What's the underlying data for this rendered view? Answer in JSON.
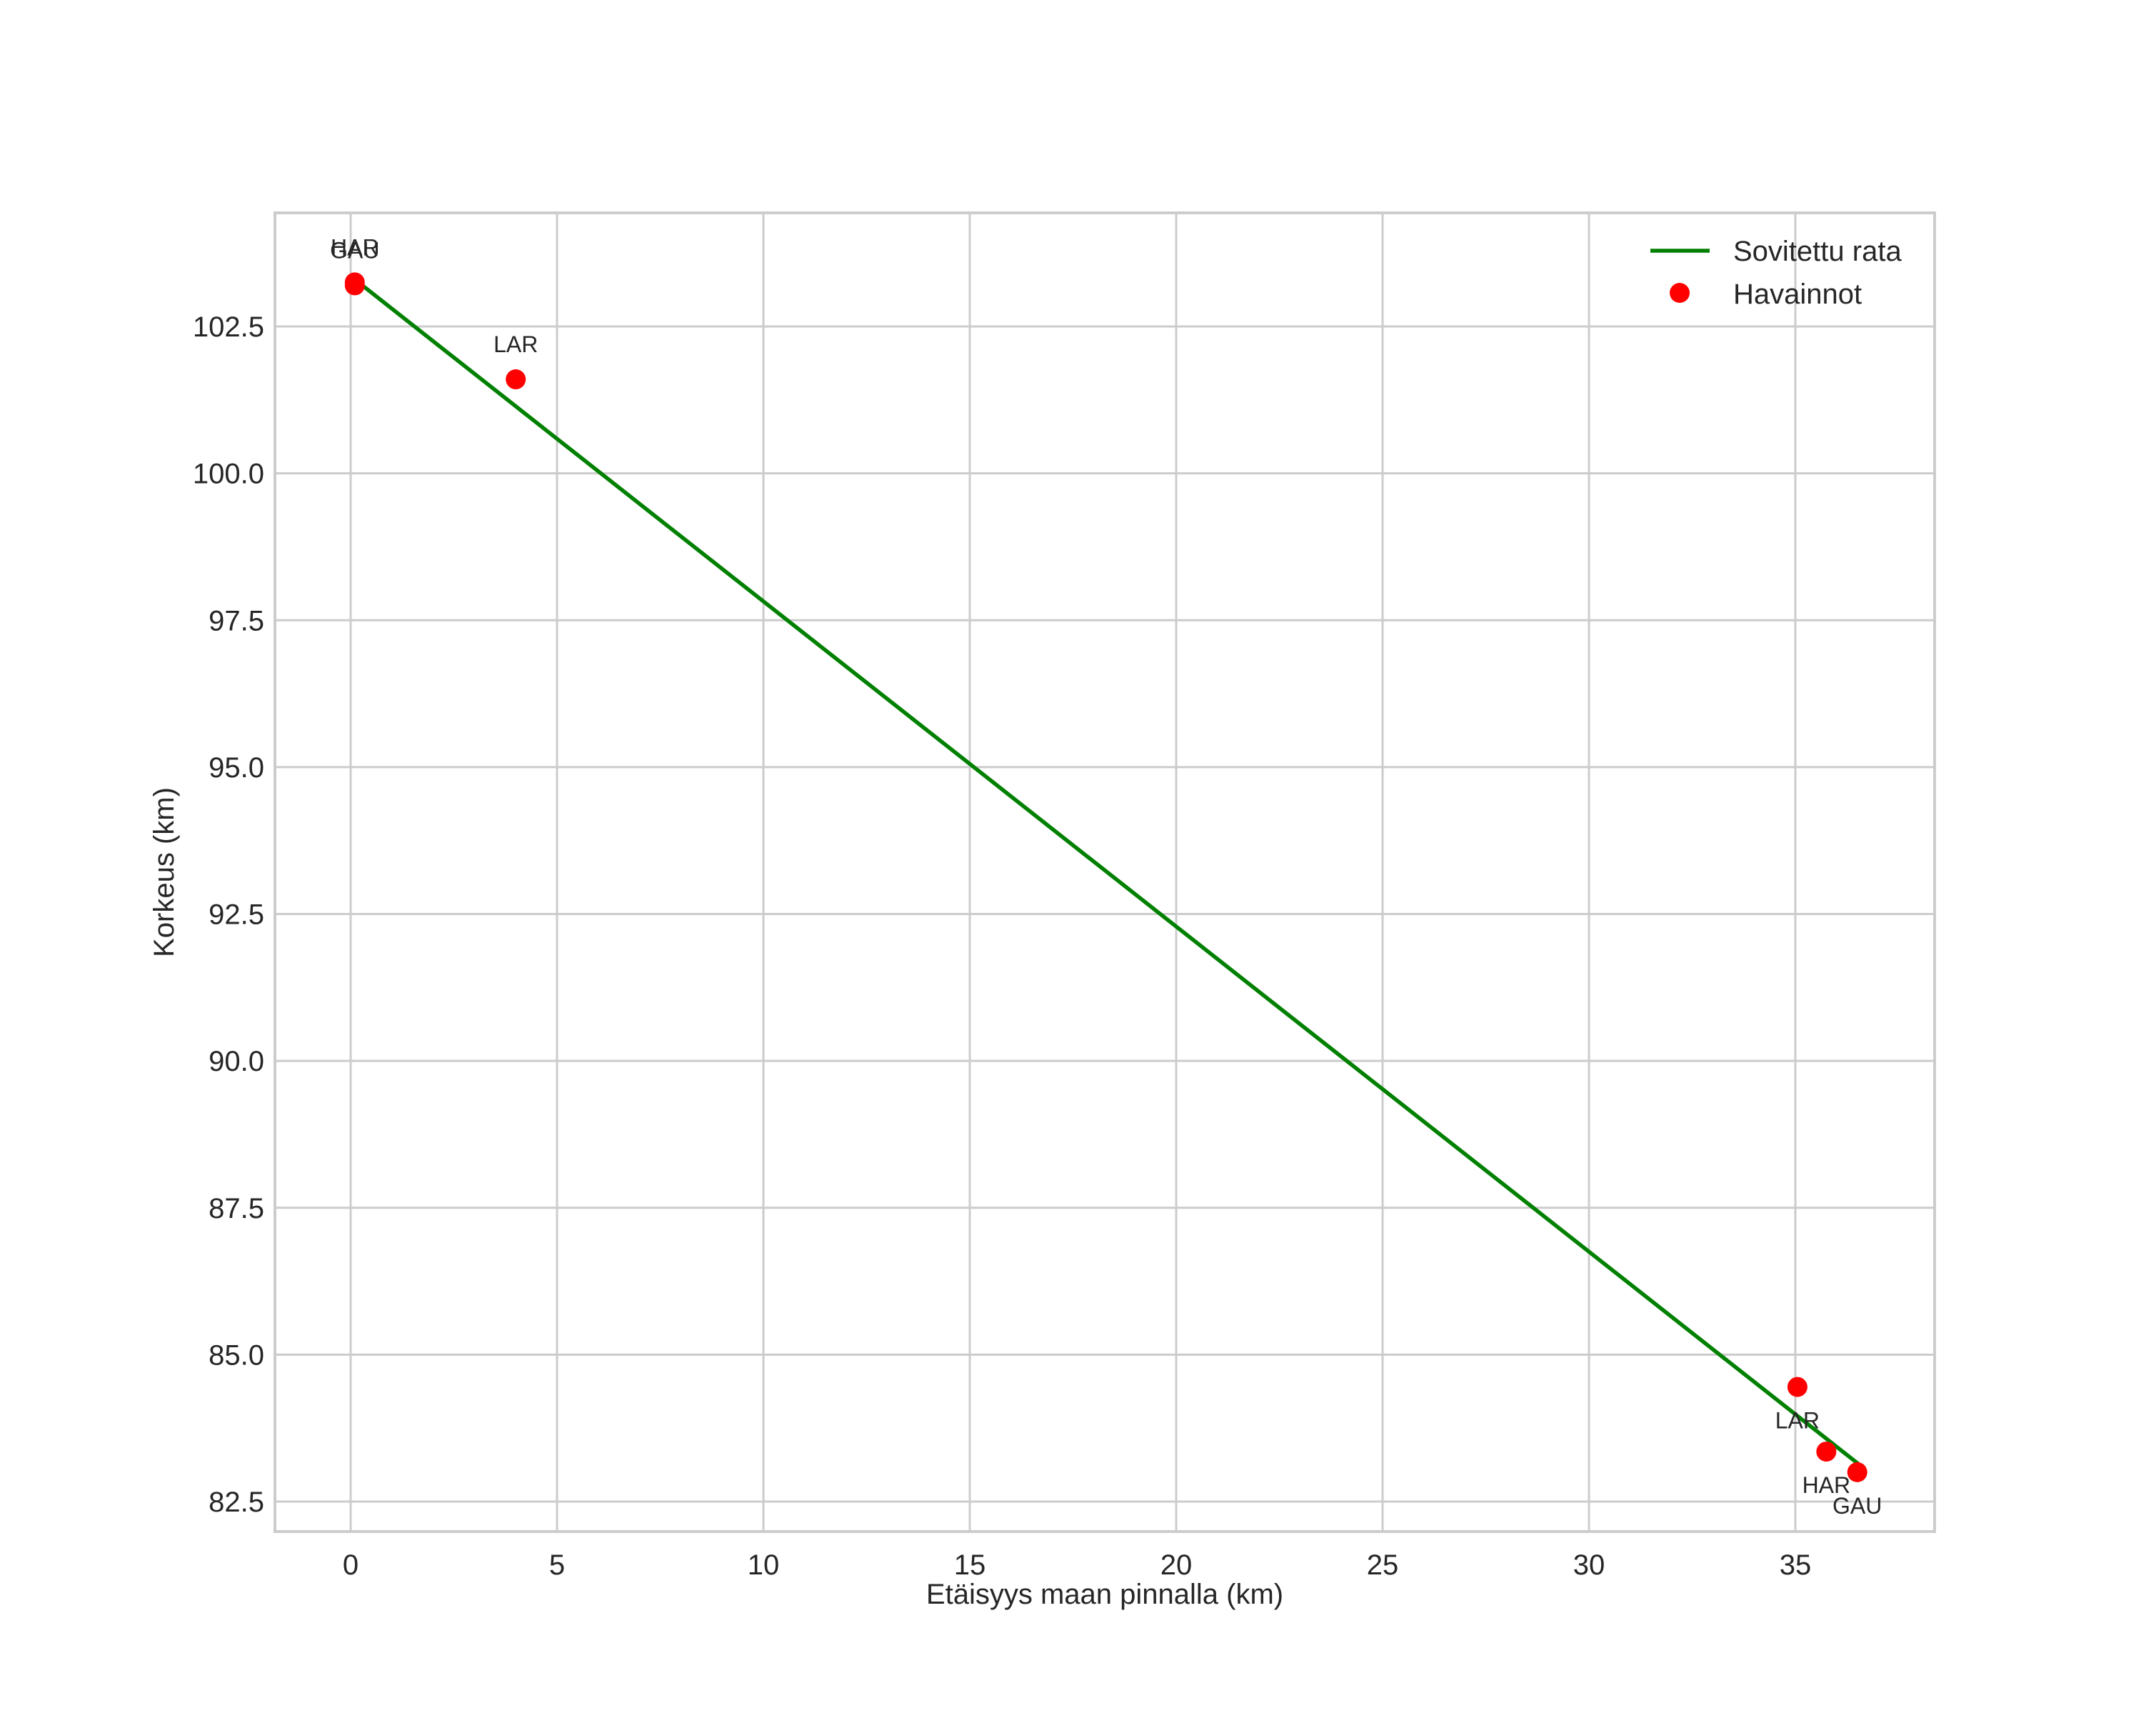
{
  "chart_data": {
    "type": "line+scatter",
    "title": "",
    "xlabel": "Etäisyys maan pinnalla (km)",
    "ylabel": "Korkeus (km)",
    "xlim": [
      -1.8,
      38.4
    ],
    "ylim": [
      81.9,
      104.4
    ],
    "xticks": [
      0,
      5,
      10,
      15,
      20,
      25,
      30,
      35
    ],
    "xtick_labels": [
      "0",
      "5",
      "10",
      "15",
      "20",
      "25",
      "30",
      "35"
    ],
    "yticks": [
      82.5,
      85.0,
      87.5,
      90.0,
      92.5,
      95.0,
      97.5,
      100.0,
      102.5
    ],
    "ytick_labels": [
      "82.5",
      "85.0",
      "87.5",
      "90.0",
      "92.5",
      "95.0",
      "97.5",
      "100.0",
      "102.5"
    ],
    "grid": true,
    "legend_position": "upper right",
    "series": [
      {
        "name": "Sovitettu rata",
        "type": "line",
        "color": "#008000",
        "x": [
          0.1,
          36.6
        ],
        "y": [
          103.3,
          83.1
        ]
      },
      {
        "name": "Havainnot",
        "type": "scatter",
        "color": "#ff0000",
        "points": [
          {
            "label": "HAR",
            "x": 0.1,
            "y": 103.25
          },
          {
            "label": "GAU",
            "x": 0.1,
            "y": 103.2
          },
          {
            "label": "LAR",
            "x": 4.0,
            "y": 101.6
          },
          {
            "label": "LAR",
            "x": 35.05,
            "y": 84.45
          },
          {
            "label": "HAR",
            "x": 35.75,
            "y": 83.35
          },
          {
            "label": "GAU",
            "x": 36.5,
            "y": 83.0
          }
        ]
      }
    ]
  },
  "legend": {
    "line_label": "Sovitettu rata",
    "marker_label": "Havainnot"
  },
  "axes": {
    "xlabel": "Etäisyys maan pinnalla (km)",
    "ylabel": "Korkeus (km)"
  }
}
